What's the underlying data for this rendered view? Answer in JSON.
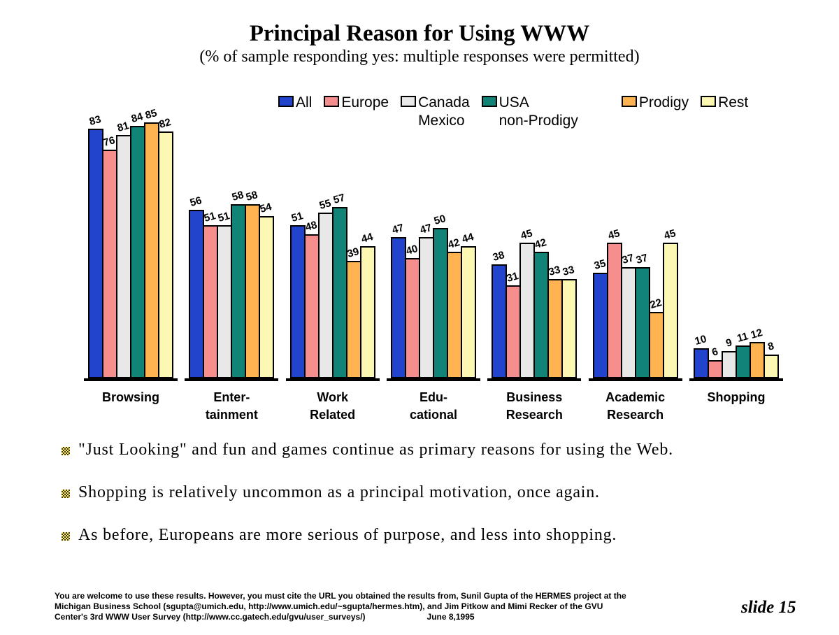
{
  "slide": {
    "title": "Principal Reason for Using WWW",
    "subtitle": "(% of sample responding yes: multiple responses were permitted)",
    "slide_number_label": "slide 15"
  },
  "legend": {
    "items": [
      {
        "label": "All",
        "label2": "",
        "color": "#2244cc"
      },
      {
        "label": "Europe",
        "label2": "",
        "color": "#f78e8e"
      },
      {
        "label": "Canada",
        "label2": "Mexico",
        "color": "#e8e8e8"
      },
      {
        "label": "USA",
        "label2": "non-Prodigy",
        "color": "#118377"
      },
      {
        "label": "Prodigy",
        "label2": "",
        "color": "#ffb351"
      },
      {
        "label": "Rest",
        "label2": "",
        "color": "#fcf7b2"
      }
    ]
  },
  "chart_data": {
    "type": "bar",
    "title": "Principal Reason for Using WWW",
    "subtitle": "(% of sample responding yes: multiple responses were permitted)",
    "categories": [
      "Browsing",
      "Enter-\ntainment",
      "Work\nRelated",
      "Edu-\ncational",
      "Business\nResearch",
      "Academic\nResearch",
      "Shopping"
    ],
    "series": [
      {
        "name": "All",
        "color": "#2244cc",
        "values": [
          83,
          56,
          51,
          47,
          38,
          35,
          10
        ]
      },
      {
        "name": "Europe",
        "color": "#f78e8e",
        "values": [
          76,
          51,
          48,
          40,
          31,
          45,
          6
        ]
      },
      {
        "name": "Canada Mexico",
        "color": "#e8e8e8",
        "values": [
          81,
          51,
          55,
          47,
          45,
          37,
          9
        ]
      },
      {
        "name": "USA non-Prodigy",
        "color": "#118377",
        "values": [
          84,
          58,
          57,
          50,
          42,
          37,
          11
        ]
      },
      {
        "name": "Prodigy",
        "color": "#ffb351",
        "values": [
          85,
          58,
          39,
          42,
          33,
          22,
          12
        ]
      },
      {
        "name": "Rest",
        "color": "#fcf7b2",
        "values": [
          82,
          54,
          44,
          44,
          33,
          45,
          8
        ]
      }
    ],
    "ylim": [
      0,
      90
    ],
    "grid": false,
    "legend_position": "top",
    "data_labels": true
  },
  "bullets": [
    "\"Just Looking\" and fun and games continue as primary reasons for using the Web.",
    "Shopping is relatively uncommon as a principal motivation, once again.",
    "As before, Europeans are more serious of purpose, and less into shopping."
  ],
  "footer": {
    "line1": "You are welcome to use these results.  However, you must cite the URL you obtained the results from, Sunil Gupta of the HERMES project at the",
    "line2": "Michigan Business School (sgupta@umich.edu, http://www.umich.edu/~sgupta/hermes.htm), and Jim Pitkow and Mimi Recker of the GVU",
    "line3": "Center's 3rd WWW User Survey (http://www.cc.gatech.edu/gvu/user_surveys/)",
    "date": "June 8,1995"
  }
}
